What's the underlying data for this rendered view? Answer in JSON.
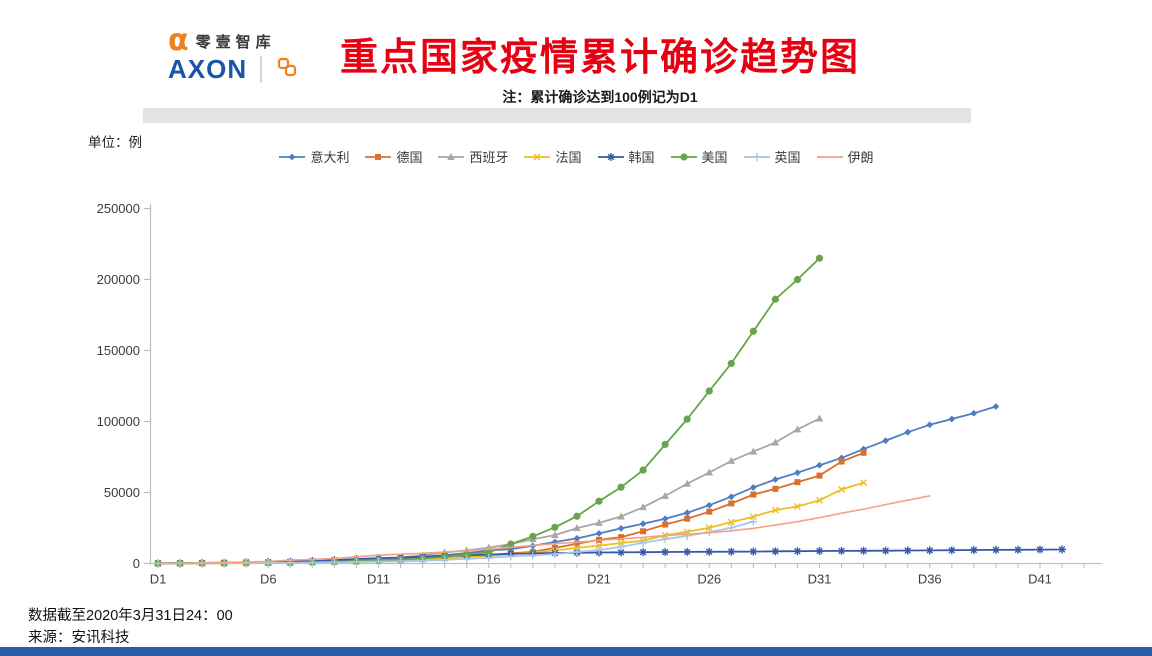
{
  "header": {
    "logo": {
      "alpha": "α",
      "brand_cn": "零壹智库",
      "brand_en": "AXON"
    },
    "title": "重点国家疫情累计确诊趋势图",
    "note": "注：累计确诊达到100例记为D1"
  },
  "unit_label": "单位：例",
  "footer": {
    "data_cutoff": "数据截至2020年3月31日24：00",
    "source": "来源：安讯科技"
  },
  "colors": {
    "title_red": "#E60012",
    "bottom_bar_blue": "#2B5AA7",
    "banner_gray": "#E3E3E3",
    "axis_gray": "#BFBFBF",
    "tick_label": "#3c3c3c",
    "logo_orange": "#F08121",
    "logo_blue": "#1D55A6"
  },
  "chart_data": {
    "type": "line",
    "title": "重点国家疫情累计确诊趋势图",
    "xlabel": "",
    "ylabel": "例",
    "ylim": [
      0,
      250000
    ],
    "y_ticks": [
      0,
      50000,
      100000,
      150000,
      200000,
      250000
    ],
    "x_tick_days": [
      1,
      6,
      11,
      16,
      21,
      26,
      31,
      36,
      41
    ],
    "x_tick_labels": [
      "D1",
      "D6",
      "D11",
      "D16",
      "D21",
      "D26",
      "D31",
      "D36",
      "D41"
    ],
    "x_minor_tick_count": 43,
    "grid": false,
    "legend_position": "top",
    "series": [
      {
        "name": "意大利",
        "color": "#4E7EC1",
        "marker": "diamond",
        "values": [
          155,
          229,
          322,
          453,
          655,
          888,
          1128,
          1694,
          2036,
          2502,
          3089,
          3858,
          4636,
          5883,
          7375,
          9172,
          10149,
          12462,
          15113,
          17660,
          21157,
          24747,
          27980,
          31506,
          35713,
          41035,
          47021,
          53578,
          59138,
          63927,
          69176,
          74386,
          80589,
          86498,
          92472,
          97689,
          101739,
          105792,
          110574
        ]
      },
      {
        "name": "德国",
        "color": "#D9712C",
        "marker": "square",
        "values": [
          117,
          150,
          188,
          240,
          349,
          534,
          684,
          847,
          1112,
          1460,
          1884,
          2369,
          3062,
          3795,
          4838,
          6012,
          7156,
          8198,
          10999,
          13957,
          16662,
          18610,
          22672,
          27436,
          31554,
          36508,
          42288,
          48582,
          52547,
          57298,
          61913,
          71808,
          77981
        ]
      },
      {
        "name": "西班牙",
        "color": "#A6A6A6",
        "marker": "triangle",
        "values": [
          120,
          165,
          222,
          259,
          400,
          500,
          673,
          1073,
          1695,
          2277,
          3146,
          4231,
          5753,
          7753,
          9191,
          11178,
          13716,
          17147,
          19980,
          24926,
          28572,
          33089,
          39673,
          47610,
          56188,
          64059,
          72248,
          78797,
          85195,
          94417,
          102136
        ]
      },
      {
        "name": "法国",
        "color": "#EEBE23",
        "marker": "x",
        "values": [
          100,
          130,
          191,
          204,
          285,
          377,
          653,
          949,
          1126,
          1412,
          1784,
          2281,
          2876,
          3661,
          4499,
          5423,
          6633,
          7730,
          9134,
          10995,
          12612,
          14459,
          16018,
          19856,
          22302,
          25233,
          29155,
          32964,
          37575,
          40174,
          44550,
          52128,
          56989
        ]
      },
      {
        "name": "韩国",
        "color": "#3559A8",
        "marker": "asterisk",
        "values": [
          104,
          204,
          433,
          602,
          833,
          977,
          1261,
          1766,
          2337,
          3150,
          3736,
          4212,
          4812,
          5328,
          5766,
          6284,
          6767,
          7134,
          7382,
          7513,
          7755,
          7869,
          7979,
          8086,
          8162,
          8236,
          8320,
          8413,
          8565,
          8652,
          8799,
          8897,
          8961,
          9037,
          9137,
          9241,
          9332,
          9478,
          9583,
          9661,
          9786,
          9887
        ]
      },
      {
        "name": "美国",
        "color": "#67A44B",
        "marker": "circle",
        "values": [
          118,
          149,
          217,
          262,
          402,
          518,
          583,
          959,
          1281,
          1663,
          2179,
          2727,
          3499,
          4632,
          6421,
          7783,
          13677,
          19100,
          25489,
          33276,
          43847,
          53740,
          65778,
          83836,
          101657,
          121478,
          140886,
          163539,
          186101,
          199979,
          215003
        ]
      },
      {
        "name": "英国",
        "color": "#A8C7E8",
        "marker": "plus",
        "values": [
          115,
          163,
          206,
          273,
          321,
          382,
          456,
          590,
          798,
          1140,
          1391,
          1543,
          1950,
          2626,
          3269,
          3983,
          5018,
          5683,
          6650,
          8077,
          9529,
          11658,
          14543,
          17089,
          19522,
          22141,
          25150,
          29474
        ]
      },
      {
        "name": "伊朗",
        "color": "#F3A284",
        "marker": "none",
        "values": [
          139,
          245,
          388,
          593,
          978,
          1501,
          2336,
          2922,
          3513,
          4747,
          5823,
          6566,
          7161,
          8042,
          9000,
          10075,
          11364,
          12729,
          13938,
          14991,
          16169,
          17361,
          18407,
          19644,
          20610,
          21638,
          23049,
          24811,
          27017,
          29406,
          32332,
          35408,
          38309,
          41495,
          44605,
          47593
        ]
      }
    ]
  }
}
